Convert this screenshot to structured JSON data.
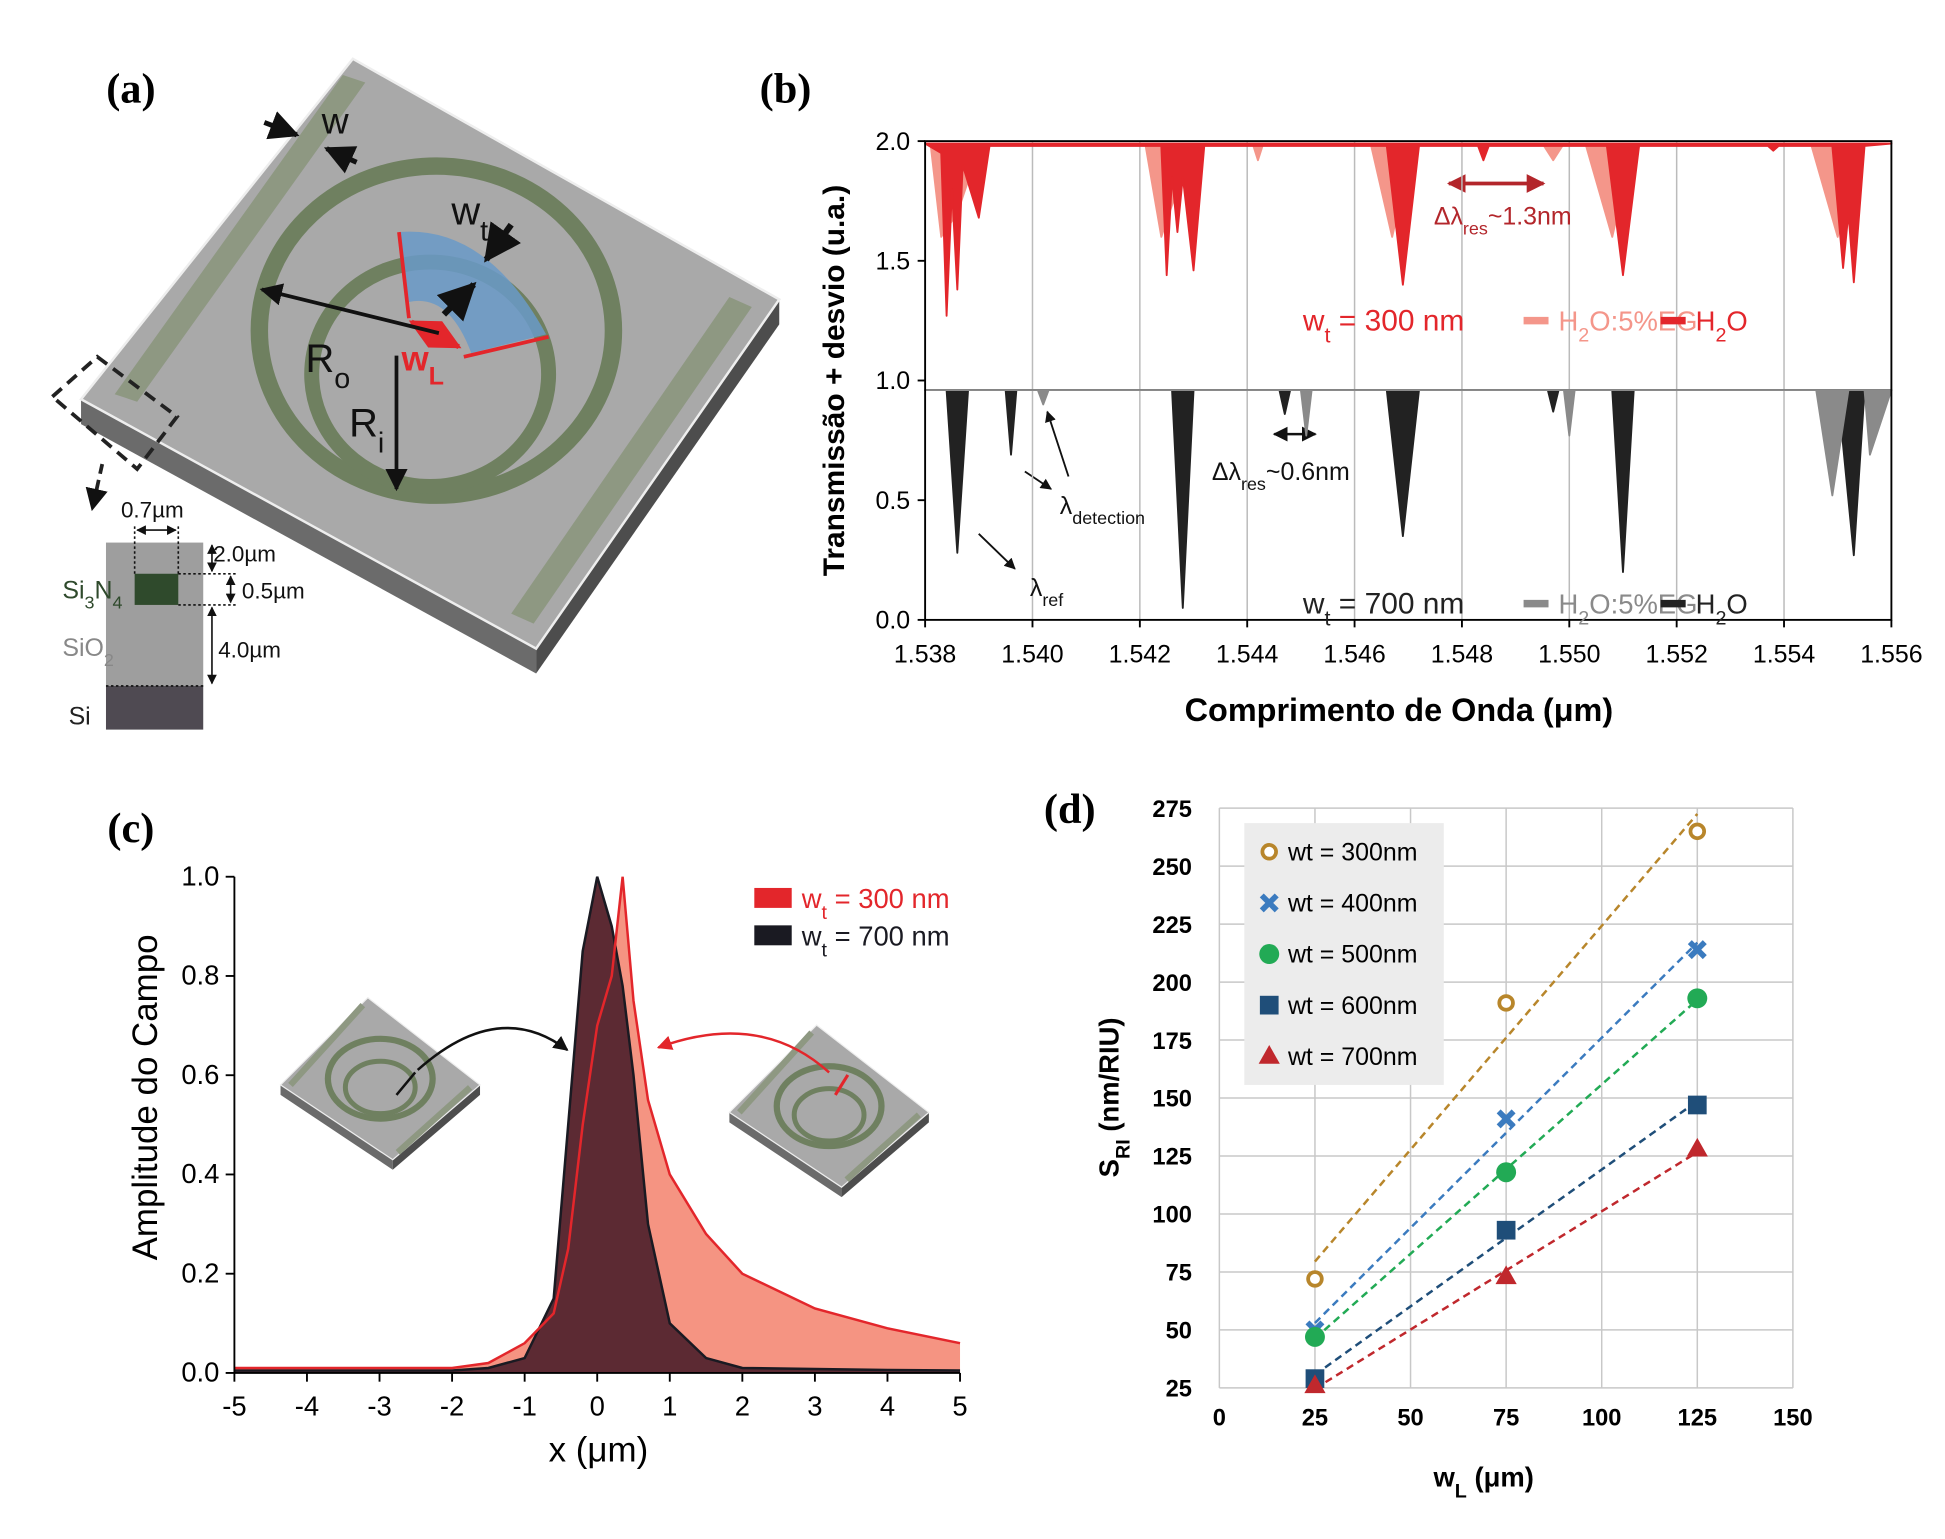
{
  "panel_labels": [
    "(a)",
    "(b)",
    "(c)",
    "(d)"
  ],
  "diagram": {
    "labels": [
      [
        "w"
      ],
      [
        "w",
        "t"
      ],
      [
        "R",
        "o"
      ],
      [
        "R",
        "i"
      ],
      [
        "w",
        "L"
      ],
      "0.7µm",
      "2.0µm",
      "0.5µm",
      "4.0µm",
      [
        "Si",
        "3",
        "N",
        "4"
      ],
      [
        "SiO",
        "2"
      ],
      "Si"
    ]
  },
  "chart_data": [
    {
      "type": "line",
      "xlabel": "Comprimento de Onda (μm)",
      "ylabel": "Transmissão + desvio (u.a.)",
      "xlim": [
        1.538,
        1.556
      ],
      "xticks": [
        1.538,
        {
          "value": 1.54,
          "label": "1.540"
        },
        1.542,
        1.544,
        1.546,
        1.548,
        {
          "value": 1.55,
          "label": "1.550"
        },
        1.552,
        1.554,
        1.556
      ],
      "ylim": [
        0,
        2
      ],
      "yticks": [
        {
          "value": 0,
          "label": "0.0"
        },
        0.5,
        {
          "value": 1,
          "label": "1.0"
        },
        1.5,
        {
          "value": 2,
          "label": "2.0"
        }
      ],
      "grid_x": true,
      "groups": [
        [
          "w",
          "t",
          " = 300 nm"
        ],
        [
          "w",
          "t",
          " = 700 nm"
        ]
      ],
      "annotations": [
        [
          "Δλ",
          "res",
          "~1.3nm"
        ],
        [
          "Δλ",
          "res",
          "~0.6nm"
        ],
        [
          "λ",
          "detection"
        ],
        [
          "λ",
          "ref"
        ]
      ],
      "series": [
        {
          "name": [
            "H",
            "2",
            "O:5%EG"
          ],
          "color": "#f4968a",
          "group": 0,
          "x": [
            1.538,
            1.5381,
            1.5383,
            1.5386,
            1.5389,
            1.5391,
            1.5421,
            1.5424,
            1.5427,
            1.543,
            1.5441,
            1.5442,
            1.5443,
            1.5463,
            1.5467,
            1.5471,
            1.5495,
            1.5497,
            1.5499,
            1.5503,
            1.5508,
            1.5512,
            1.5545,
            1.555,
            1.5554,
            1.556
          ],
          "values": [
            1.99,
            1.99,
            1.6,
            1.7,
            1.9,
            1.99,
            1.99,
            1.6,
            1.8,
            1.99,
            1.99,
            1.92,
            1.99,
            1.99,
            1.6,
            1.99,
            1.99,
            1.92,
            1.99,
            1.99,
            1.6,
            1.99,
            1.99,
            1.6,
            1.99,
            1.99
          ]
        },
        {
          "name": [
            "H",
            "2",
            "O"
          ],
          "color": "#e3262b",
          "group": 0,
          "x": [
            1.538,
            1.5383,
            1.5384,
            1.5385,
            1.5386,
            1.5387,
            1.539,
            1.5392,
            1.5424,
            1.5425,
            1.5426,
            1.5427,
            1.5428,
            1.543,
            1.5432,
            1.5466,
            1.5469,
            1.5472,
            1.5483,
            1.5484,
            1.5485,
            1.5507,
            1.551,
            1.5513,
            1.5537,
            1.5538,
            1.5539,
            1.5549,
            1.5551,
            1.5552,
            1.5553,
            1.5555,
            1.556
          ],
          "values": [
            1.99,
            1.95,
            1.27,
            1.8,
            1.38,
            1.9,
            1.68,
            1.98,
            1.98,
            1.44,
            1.85,
            1.62,
            1.85,
            1.46,
            1.98,
            1.98,
            1.4,
            1.98,
            1.98,
            1.92,
            1.98,
            1.98,
            1.44,
            1.98,
            1.98,
            1.96,
            1.98,
            1.98,
            1.47,
            1.7,
            1.41,
            1.98,
            1.99
          ]
        },
        {
          "name": [
            "H",
            "2",
            "O:5%EG"
          ],
          "color": "#8a8a8a",
          "group": 1,
          "x": [
            1.538,
            1.5401,
            1.5402,
            1.5403,
            1.545,
            1.5451,
            1.5452,
            1.5499,
            1.55,
            1.5501,
            1.5546,
            1.5549,
            1.5552,
            1.5555,
            1.5556,
            1.556
          ],
          "values": [
            0.96,
            0.96,
            0.9,
            0.96,
            0.96,
            0.77,
            0.96,
            0.96,
            0.77,
            0.96,
            0.96,
            0.52,
            0.96,
            0.96,
            0.69,
            0.96
          ]
        },
        {
          "name": [
            "H",
            "2",
            "O"
          ],
          "color": "#222222",
          "group": 1,
          "x": [
            1.538,
            1.5384,
            1.5386,
            1.5388,
            1.5395,
            1.5396,
            1.5397,
            1.5426,
            1.5428,
            1.543,
            1.5446,
            1.5447,
            1.5448,
            1.5466,
            1.5469,
            1.5472,
            1.5496,
            1.5497,
            1.5498,
            1.5508,
            1.551,
            1.5512,
            1.555,
            1.5553,
            1.5555,
            1.556
          ],
          "values": [
            0.96,
            0.96,
            0.28,
            0.96,
            0.96,
            0.69,
            0.96,
            0.96,
            0.05,
            0.96,
            0.96,
            0.86,
            0.96,
            0.96,
            0.35,
            0.96,
            0.96,
            0.87,
            0.96,
            0.96,
            0.2,
            0.96,
            0.96,
            0.27,
            0.96,
            0.96
          ]
        }
      ]
    },
    {
      "type": "area",
      "xlabel": "x (μm)",
      "ylabel": "Amplitude do Campo",
      "xlim": [
        -5,
        5
      ],
      "xticks": [
        -5,
        -4,
        -3,
        -2,
        -1,
        0,
        1,
        2,
        3,
        4,
        5
      ],
      "ylim": [
        0,
        1
      ],
      "yticks": [
        {
          "value": 0,
          "label": "0.0"
        },
        0.2,
        0.4,
        0.6,
        0.8,
        {
          "value": 1,
          "label": "1.0"
        }
      ],
      "x": [
        -5,
        -4,
        -3,
        -2,
        -1.5,
        -1,
        -0.6,
        -0.4,
        -0.2,
        0,
        0.2,
        0.35,
        0.5,
        0.7,
        1,
        1.5,
        2,
        3,
        4,
        5
      ],
      "series": [
        {
          "name": [
            "w",
            "t",
            " = 300 nm"
          ],
          "color": "#e3262b",
          "fill": "#f59482",
          "values": [
            0.01,
            0.01,
            0.01,
            0.01,
            0.02,
            0.06,
            0.12,
            0.25,
            0.5,
            0.7,
            0.8,
            1.0,
            0.75,
            0.55,
            0.4,
            0.28,
            0.2,
            0.13,
            0.09,
            0.06
          ]
        },
        {
          "name": [
            "w",
            "t",
            " = 700 nm"
          ],
          "color": "#1a1a22",
          "fill": "#5c2a33",
          "values": [
            0.005,
            0.005,
            0.005,
            0.005,
            0.01,
            0.03,
            0.15,
            0.5,
            0.85,
            1.0,
            0.9,
            0.78,
            0.6,
            0.3,
            0.1,
            0.03,
            0.01,
            0.008,
            0.006,
            0.005
          ]
        }
      ]
    },
    {
      "type": "scatter",
      "xlabel": [
        "w",
        "L",
        " (μm)"
      ],
      "ylabel": [
        "S",
        "RI",
        " (nm/RIU)"
      ],
      "xlim": [
        0,
        150
      ],
      "xticks": [
        0,
        25,
        50,
        75,
        100,
        125,
        150
      ],
      "ylim": [
        25,
        275
      ],
      "yticks": [
        25,
        50,
        75,
        100,
        125,
        150,
        175,
        200,
        225,
        250,
        275
      ],
      "grid": true,
      "legend": "upper left",
      "series": [
        {
          "name": "wt = 300nm",
          "color": "#b8862b",
          "marker": "circle-open",
          "x": [
            25,
            75,
            125
          ],
          "values": [
            72,
            191,
            265
          ]
        },
        {
          "name": "wt = 400nm",
          "color": "#3b7bbf",
          "marker": "x",
          "x": [
            25,
            75,
            125
          ],
          "values": [
            50,
            141,
            214
          ]
        },
        {
          "name": "wt = 500nm",
          "color": "#22aa55",
          "marker": "circle",
          "x": [
            25,
            75,
            125
          ],
          "values": [
            47,
            118,
            193
          ]
        },
        {
          "name": "wt = 600nm",
          "color": "#1f4e79",
          "marker": "square",
          "x": [
            25,
            75,
            125
          ],
          "values": [
            29,
            93,
            147
          ]
        },
        {
          "name": "wt = 700nm",
          "color": "#c0282d",
          "marker": "triangle",
          "x": [
            25,
            75,
            125
          ],
          "values": [
            26,
            73,
            128
          ]
        }
      ]
    }
  ]
}
